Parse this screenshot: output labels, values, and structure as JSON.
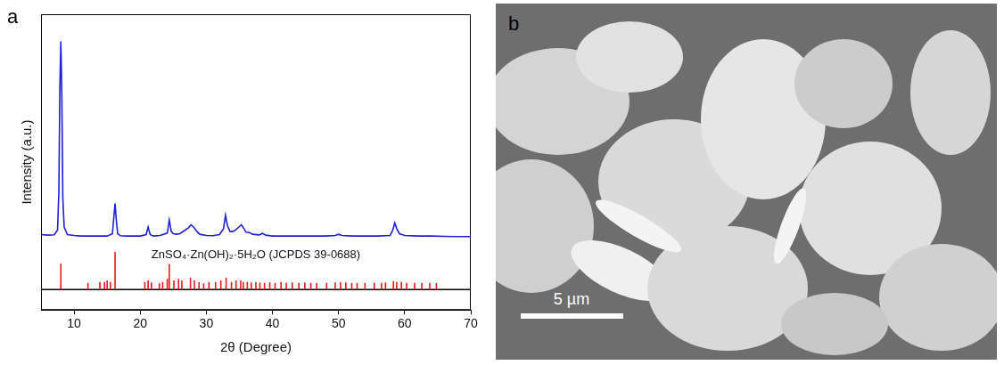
{
  "chart_data": {
    "type": "line",
    "panel_label": "a",
    "x_label": "2θ (Degree)",
    "y_label": "Intensity (a.u.)",
    "xlim": [
      5,
      70
    ],
    "xticks": [
      10,
      20,
      30,
      40,
      50,
      60,
      70
    ],
    "ylim": [
      0,
      100
    ],
    "yticks": [],
    "tick_labels": "x",
    "grid": false,
    "series": [
      {
        "type": "line",
        "color": "#1f1fd6",
        "x": [
          5,
          6,
          7,
          7.5,
          7.7,
          7.85,
          8,
          8.15,
          8.3,
          8.5,
          9,
          10,
          11,
          12,
          13,
          14,
          15,
          15.8,
          16,
          16.2,
          16.4,
          16.6,
          17,
          18,
          19,
          20,
          20.9,
          21.2,
          21.5,
          22,
          23,
          24.1,
          24.4,
          24.7,
          25,
          25.5,
          26,
          26.8,
          27.3,
          27.7,
          28.1,
          28.6,
          29,
          30,
          31,
          32,
          32.6,
          32.9,
          33.2,
          33.6,
          34,
          34.5,
          35,
          35.3,
          35.7,
          36,
          36.5,
          37,
          38,
          38.5,
          39,
          40,
          42,
          44,
          46,
          48,
          49.5,
          50,
          50.5,
          52,
          54,
          56,
          57.8,
          58.2,
          58.5,
          58.8,
          59.2,
          60,
          62,
          64,
          66,
          68,
          70
        ],
        "values": [
          25.5,
          25.3,
          25.4,
          27,
          40,
          75,
          90.8,
          72,
          38,
          28,
          25.5,
          25.2,
          25,
          25,
          25,
          25,
          25,
          25.8,
          31,
          36,
          30,
          25.8,
          25.1,
          25,
          25,
          25,
          25.5,
          28,
          25.5,
          25,
          25.2,
          26,
          30.4,
          26.5,
          25.8,
          25.6,
          25.8,
          27,
          27.8,
          28.8,
          28,
          26.5,
          25.6,
          25.2,
          25.1,
          25.5,
          27.5,
          32,
          28.5,
          26.5,
          26.5,
          27.2,
          28.2,
          28.8,
          27.5,
          26.3,
          26.2,
          25.6,
          25.4,
          25.9,
          25.3,
          25,
          25,
          25,
          25,
          25,
          25.2,
          25.6,
          25.2,
          25,
          25,
          25,
          25.2,
          27,
          29.4,
          27.5,
          25.8,
          25.2,
          25,
          25,
          24.9,
          24.8,
          24.8
        ]
      },
      {
        "type": "stick",
        "name": "ZnSO₄·Zn(OH)₂·5H₂O (JCPDS 39-0688)",
        "color": "#e8191c",
        "x": [
          8,
          12.1,
          13.9,
          14.6,
          15,
          15.5,
          16.2,
          20.7,
          21.2,
          21.7,
          22.9,
          23.4,
          24.1,
          24.4,
          25.1,
          25.8,
          26.3,
          27.6,
          28.2,
          28.9,
          29.6,
          30.4,
          31.4,
          32.2,
          33,
          33.8,
          34.5,
          35.2,
          35.6,
          36.2,
          36.8,
          37.5,
          38.1,
          38.8,
          39.6,
          40.4,
          41.3,
          42.1,
          43,
          44,
          44.9,
          45.8,
          46.7,
          48.2,
          49.5,
          50.3,
          51.1,
          52,
          52.8,
          54,
          55.4,
          56.5,
          57.1,
          58.3,
          58.8,
          59.5,
          60.3,
          61.5,
          62.6,
          63.8,
          64.8
        ],
        "values": [
          15.7,
          9.2,
          9.5,
          9.5,
          10,
          9.5,
          19.6,
          9.5,
          10,
          9.3,
          9,
          9.5,
          10.5,
          15.5,
          10,
          10.5,
          10,
          11,
          10,
          9.5,
          9,
          9.5,
          9.5,
          10,
          11,
          9.5,
          10,
          10,
          9.5,
          9.5,
          9.3,
          9.5,
          9.3,
          9.2,
          9.3,
          9.2,
          9.5,
          9.2,
          9.3,
          9.2,
          9.3,
          9.2,
          9.2,
          9.2,
          9.3,
          9.5,
          9.3,
          9.2,
          9.2,
          9.2,
          9.2,
          9.2,
          9.3,
          9.8,
          9.5,
          9.5,
          9.2,
          9.2,
          9.2,
          9.2,
          9.2
        ]
      },
      {
        "type": "line",
        "color": "#000000",
        "x": [
          5,
          70
        ],
        "values": [
          6.9,
          6.9
        ]
      }
    ]
  },
  "image": {
    "panel_label": "b",
    "scale_bar": "5 µm"
  }
}
